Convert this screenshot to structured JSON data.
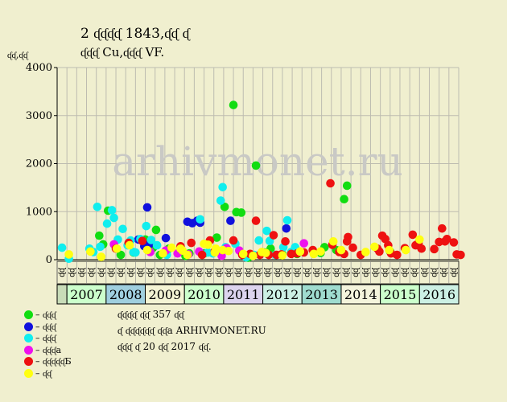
{
  "title_line1": "2 ᶑᶑᶑᶑ 1843,ᶑᶑ ᶑ",
  "title_line2": "ᶑᶑᶑ Cu,ᶑᶑᶑ VF.",
  "y_axis_label": "ᶑᶑ,ᶑᶑ",
  "watermark": "arhivmonet.ru",
  "legend": [
    {
      "label": "– ᶑᶑᶑ",
      "color": "#11dd11"
    },
    {
      "label": "– ᶑᶑᶑ",
      "color": "#1111dd"
    },
    {
      "label": "– ᶑᶑᶑ",
      "color": "#11eeee"
    },
    {
      "label": "– ᶑᶑᶑа",
      "color": "#ee11ee"
    },
    {
      "label": "– ᶑᶑᶑᶑᶑБ",
      "color": "#ee1111"
    },
    {
      "label": "– ᶑᶑ",
      "color": "#ffff11"
    }
  ],
  "notes": [
    "ᶑᶑᶑᶑ ᶑᶑ 357 ᶑᶑ",
    "ᶑ ᶑᶑᶑᶑᶑᶑ ᶑᶑа ARHIVMONET.RU",
    "ᶑᶑᶑ ᶑ 20 ᶑᶑ 2017 ᶑᶑ."
  ],
  "chart_data": {
    "type": "scatter",
    "ylim": [
      0,
      4000
    ],
    "yticks": [
      0,
      1000,
      2000,
      3000,
      4000
    ],
    "grid": true,
    "quarter_labels": [
      "ᶑᶑ",
      "ᶑᶑ",
      "ᶑᶑ",
      "ᶑᶑ",
      "ᶑᶑ",
      "ᶑᶑ",
      "ᶑᶑ",
      "ᶑᶑ",
      "ᶑᶑ",
      "ᶑᶑ",
      "ᶑᶑ",
      "ᶑᶑ",
      "ᶑᶑ",
      "ᶑᶑ",
      "ᶑᶑ",
      "ᶑᶑ",
      "ᶑᶑ",
      "ᶑᶑ",
      "ᶑᶑ",
      "ᶑᶑ",
      "ᶑᶑ",
      "ᶑᶑ",
      "ᶑᶑ",
      "ᶑᶑ",
      "ᶑᶑ",
      "ᶑᶑ",
      "ᶑᶑ",
      "ᶑᶑ",
      "ᶑᶑ",
      "ᶑᶑ",
      "ᶑᶑ",
      "ᶑᶑ",
      "ᶑᶑ",
      "ᶑᶑ",
      "ᶑᶑ",
      "ᶑᶑ",
      "ᶑᶑ",
      "ᶑᶑ",
      "ᶑᶑ",
      "ᶑᶑ",
      "ᶑᶑ"
    ],
    "years": [
      {
        "label": "",
        "color": "#c8dcb8"
      },
      {
        "label": "2007",
        "color": "#ccffcc"
      },
      {
        "label": "2008",
        "color": "#9fcfdf"
      },
      {
        "label": "2009",
        "color": "#f4f4d4"
      },
      {
        "label": "2010",
        "color": "#ccffcc"
      },
      {
        "label": "2011",
        "color": "#dcd4ee"
      },
      {
        "label": "2012",
        "color": "#ccf0e4"
      },
      {
        "label": "2013",
        "color": "#9fdccf"
      },
      {
        "label": "2014",
        "color": "#f4f4dc"
      },
      {
        "label": "2015",
        "color": "#ccffcc"
      },
      {
        "label": "2016",
        "color": "#ccf0e4"
      }
    ],
    "series": [
      {
        "color": "#11dd11",
        "points": [
          [
            4.3,
            500
          ],
          [
            4.7,
            320
          ],
          [
            5.2,
            1020
          ],
          [
            6.5,
            100
          ],
          [
            7.8,
            150
          ],
          [
            9.0,
            420
          ],
          [
            9.8,
            250
          ],
          [
            10.1,
            620
          ],
          [
            10.5,
            100
          ],
          [
            11.4,
            230
          ],
          [
            13.1,
            80
          ],
          [
            13.5,
            130
          ],
          [
            15.0,
            130
          ],
          [
            16.3,
            460
          ],
          [
            17.1,
            1100
          ],
          [
            18.0,
            3220
          ],
          [
            18.3,
            990
          ],
          [
            18.8,
            980
          ],
          [
            19.5,
            40
          ],
          [
            20.3,
            1960
          ],
          [
            21.2,
            150
          ],
          [
            21.8,
            230
          ],
          [
            23.0,
            110
          ],
          [
            24.5,
            120
          ],
          [
            26.9,
            140
          ],
          [
            27.3,
            260
          ],
          [
            28.5,
            200
          ],
          [
            29.3,
            1260
          ],
          [
            29.6,
            1540
          ],
          [
            34.0,
            170
          ]
        ]
      },
      {
        "color": "#1111dd",
        "points": [
          [
            8.3,
            420
          ],
          [
            8.9,
            280
          ],
          [
            9.2,
            1090
          ],
          [
            9.4,
            320
          ],
          [
            11.1,
            450
          ],
          [
            13.3,
            790
          ],
          [
            13.8,
            760
          ],
          [
            14.3,
            810
          ],
          [
            14.6,
            770
          ],
          [
            17.7,
            810
          ],
          [
            23.4,
            650
          ]
        ]
      },
      {
        "color": "#11eeee",
        "points": [
          [
            0.5,
            250
          ],
          [
            1.2,
            20
          ],
          [
            3.3,
            230
          ],
          [
            3.7,
            160
          ],
          [
            4.1,
            1100
          ],
          [
            4.4,
            270
          ],
          [
            5.1,
            750
          ],
          [
            5.6,
            1030
          ],
          [
            5.8,
            870
          ],
          [
            6.2,
            420
          ],
          [
            6.7,
            640
          ],
          [
            7.2,
            300
          ],
          [
            7.5,
            400
          ],
          [
            7.8,
            160
          ],
          [
            8.0,
            150
          ],
          [
            8.5,
            430
          ],
          [
            9.1,
            700
          ],
          [
            9.6,
            410
          ],
          [
            10.2,
            300
          ],
          [
            11.2,
            100
          ],
          [
            14.6,
            840
          ],
          [
            15.4,
            150
          ],
          [
            15.9,
            130
          ],
          [
            16.7,
            1230
          ],
          [
            16.9,
            1510
          ],
          [
            17.2,
            260
          ],
          [
            18.2,
            330
          ],
          [
            19.3,
            50
          ],
          [
            20.1,
            100
          ],
          [
            20.6,
            400
          ],
          [
            21.4,
            600
          ],
          [
            21.7,
            390
          ],
          [
            22.3,
            100
          ],
          [
            23.1,
            260
          ],
          [
            23.5,
            820
          ],
          [
            23.9,
            160
          ],
          [
            24.3,
            260
          ]
        ]
      },
      {
        "color": "#ee11ee",
        "points": [
          [
            5.8,
            320
          ],
          [
            9.5,
            160
          ],
          [
            11.1,
            190
          ],
          [
            12.3,
            130
          ],
          [
            13.4,
            110
          ],
          [
            14.5,
            170
          ],
          [
            16.8,
            80
          ],
          [
            17.3,
            240
          ],
          [
            18.6,
            190
          ],
          [
            25.2,
            340
          ]
        ]
      },
      {
        "color": "#ee1111",
        "points": [
          [
            6.0,
            230
          ],
          [
            7.3,
            350
          ],
          [
            8.7,
            390
          ],
          [
            12.6,
            280
          ],
          [
            13.7,
            350
          ],
          [
            14.8,
            100
          ],
          [
            15.6,
            400
          ],
          [
            16.1,
            180
          ],
          [
            18.0,
            400
          ],
          [
            18.9,
            100
          ],
          [
            19.7,
            120
          ],
          [
            20.3,
            810
          ],
          [
            20.7,
            100
          ],
          [
            21.6,
            100
          ],
          [
            22.1,
            510
          ],
          [
            22.4,
            100
          ],
          [
            22.9,
            110
          ],
          [
            23.3,
            380
          ],
          [
            23.9,
            120
          ],
          [
            24.5,
            130
          ],
          [
            25.2,
            150
          ],
          [
            26.1,
            200
          ],
          [
            27.9,
            1590
          ],
          [
            28.1,
            310
          ],
          [
            28.8,
            160
          ],
          [
            29.3,
            120
          ],
          [
            29.6,
            380
          ],
          [
            29.7,
            470
          ],
          [
            30.2,
            250
          ],
          [
            31.0,
            100
          ],
          [
            32.7,
            230
          ],
          [
            32.9,
            170
          ],
          [
            33.2,
            500
          ],
          [
            33.5,
            430
          ],
          [
            33.8,
            300
          ],
          [
            34.1,
            130
          ],
          [
            34.7,
            100
          ],
          [
            35.5,
            240
          ],
          [
            36.3,
            520
          ],
          [
            36.6,
            300
          ],
          [
            36.9,
            350
          ],
          [
            37.2,
            230
          ],
          [
            38.5,
            220
          ],
          [
            39.0,
            370
          ],
          [
            39.3,
            650
          ],
          [
            39.6,
            380
          ],
          [
            39.8,
            430
          ],
          [
            40.5,
            360
          ],
          [
            40.8,
            110
          ],
          [
            41.2,
            100
          ]
        ]
      },
      {
        "color": "#ffff11",
        "points": [
          [
            1.2,
            110
          ],
          [
            3.4,
            170
          ],
          [
            4.5,
            60
          ],
          [
            6.1,
            230
          ],
          [
            7.4,
            300
          ],
          [
            9.2,
            200
          ],
          [
            10.8,
            130
          ],
          [
            11.7,
            250
          ],
          [
            12.6,
            230
          ],
          [
            12.8,
            190
          ],
          [
            13.3,
            100
          ],
          [
            15.0,
            330
          ],
          [
            15.4,
            310
          ],
          [
            16.1,
            150
          ],
          [
            16.2,
            230
          ],
          [
            16.9,
            200
          ],
          [
            17.5,
            180
          ],
          [
            19.0,
            120
          ],
          [
            20.0,
            80
          ],
          [
            20.9,
            160
          ],
          [
            21.3,
            140
          ],
          [
            23.0,
            90
          ],
          [
            24.8,
            170
          ],
          [
            26.2,
            120
          ],
          [
            26.9,
            170
          ],
          [
            28.2,
            380
          ],
          [
            29.0,
            200
          ],
          [
            31.5,
            160
          ],
          [
            32.4,
            270
          ],
          [
            33.9,
            200
          ],
          [
            35.6,
            200
          ],
          [
            37.0,
            420
          ]
        ]
      }
    ]
  }
}
